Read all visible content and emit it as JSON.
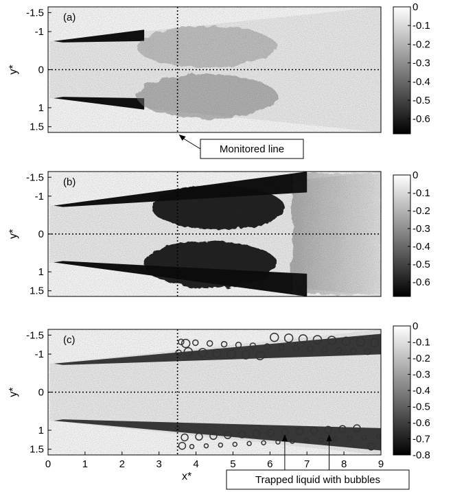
{
  "figure": {
    "panels": [
      {
        "label": "(a)",
        "ylabel": "y*",
        "colorbar": {
          "ticks": [
            "0",
            "-0.1",
            "-0.2",
            "-0.3",
            "-0.4",
            "-0.5",
            "-0.6"
          ],
          "range": [
            -0.68,
            0
          ]
        },
        "annotation": "Monitored line"
      },
      {
        "label": "(b)",
        "ylabel": "y*",
        "colorbar": {
          "ticks": [
            "0",
            "-0.1",
            "-0.2",
            "-0.3",
            "-0.4",
            "-0.5",
            "-0.6"
          ],
          "range": [
            -0.68,
            0
          ]
        }
      },
      {
        "label": "(c)",
        "ylabel": "y*",
        "xlabel": "x*",
        "colorbar": {
          "ticks": [
            "0",
            "-0.1",
            "-0.2",
            "-0.3",
            "-0.4",
            "-0.5",
            "-0.6",
            "-0.7",
            "-0.8"
          ],
          "range": [
            -0.8,
            0
          ]
        },
        "annotation": "Trapped liquid with bubbles"
      }
    ]
  },
  "chart_data": [
    {
      "type": "heatmap",
      "title": "(a)",
      "xlabel": "",
      "ylabel": "y*",
      "xlim": [
        0,
        9
      ],
      "ylim": [
        -1.65,
        1.65
      ],
      "y_inverted": true,
      "yticks": [
        -1.5,
        -1,
        0,
        1,
        1.5
      ],
      "ytick_labels": [
        "-1.5",
        "-1",
        "0",
        "1",
        "1.5"
      ],
      "xticks_visible": false,
      "colorbar_ticks": [
        0,
        -0.1,
        -0.2,
        -0.3,
        -0.4,
        -0.5,
        -0.6
      ],
      "colormap": "gray",
      "reference_lines": {
        "vertical_x": 3.5,
        "horizontal_y": 0,
        "style": "dotted"
      },
      "annotation": {
        "text": "Monitored line",
        "points_to_x": 3.5
      }
    },
    {
      "type": "heatmap",
      "title": "(b)",
      "xlabel": "",
      "ylabel": "y*",
      "xlim": [
        0,
        9
      ],
      "ylim": [
        -1.65,
        1.65
      ],
      "y_inverted": true,
      "yticks": [
        -1.5,
        -1,
        0,
        1,
        1.5
      ],
      "ytick_labels": [
        "-1.5",
        "-1",
        "0",
        "1",
        "1.5"
      ],
      "xticks_visible": false,
      "colorbar_ticks": [
        0,
        -0.1,
        -0.2,
        -0.3,
        -0.4,
        -0.5,
        -0.6
      ],
      "colormap": "gray",
      "reference_lines": {
        "vertical_x": 3.5,
        "horizontal_y": 0,
        "style": "dotted"
      }
    },
    {
      "type": "heatmap",
      "title": "(c)",
      "xlabel": "x*",
      "ylabel": "y*",
      "xlim": [
        0,
        9
      ],
      "ylim": [
        -1.65,
        1.65
      ],
      "y_inverted": true,
      "xticks": [
        0,
        1,
        2,
        3,
        4,
        5,
        6,
        7,
        8,
        9
      ],
      "xtick_labels": [
        "0",
        "1",
        "2",
        "3",
        "4",
        "5",
        "6",
        "7",
        "8",
        "9"
      ],
      "yticks": [
        -1.5,
        -1,
        0,
        1,
        1.5
      ],
      "ytick_labels": [
        "-1.5",
        "-1",
        "0",
        "1",
        "1.5"
      ],
      "colorbar_ticks": [
        0,
        -0.1,
        -0.2,
        -0.3,
        -0.4,
        -0.5,
        -0.6,
        -0.7,
        -0.8
      ],
      "colormap": "gray",
      "reference_lines": {
        "vertical_x": 3.5,
        "horizontal_y": 0,
        "style": "dotted"
      },
      "annotation": {
        "text": "Trapped liquid with bubbles",
        "points_to_x": [
          6.4,
          7.6
        ]
      }
    }
  ]
}
